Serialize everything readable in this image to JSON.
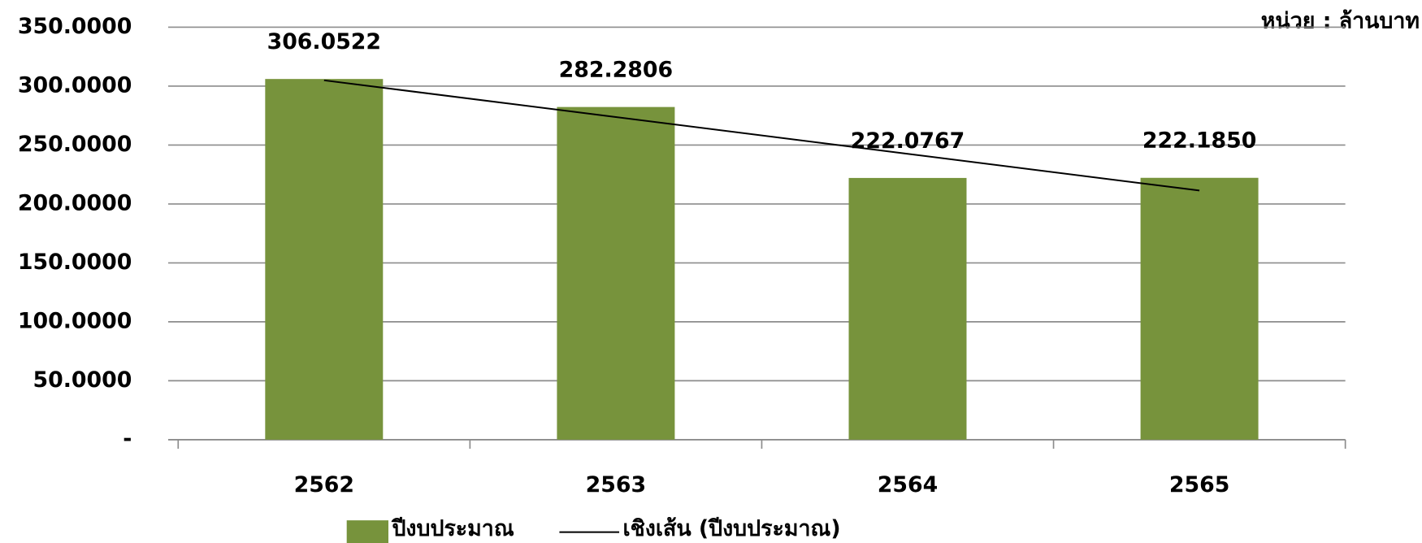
{
  "chart_data": {
    "type": "bar",
    "unit_label": "หน่วย : ล้านบาท",
    "categories": [
      "2562",
      "2563",
      "2564",
      "2565"
    ],
    "series": [
      {
        "name": "ปีงบประมาณ",
        "color": "#77933c",
        "values": [
          306.0522,
          282.2806,
          222.0767,
          222.185
        ],
        "value_labels": [
          "306.0522",
          "282.2806",
          "222.0767",
          "222.1850"
        ]
      },
      {
        "name": "เชิงเส้น (ปีงบประมาณ)",
        "type": "line",
        "color": "#000000",
        "values": [
          304.92,
          273.74,
          242.56,
          211.38
        ]
      }
    ],
    "ylim": [
      0,
      350
    ],
    "yticks": [
      {
        "value": 0,
        "label": "-"
      },
      {
        "value": 50,
        "label": "50.0000"
      },
      {
        "value": 100,
        "label": "100.0000"
      },
      {
        "value": 150,
        "label": "150.0000"
      },
      {
        "value": 200,
        "label": "200.0000"
      },
      {
        "value": 250,
        "label": "250.0000"
      },
      {
        "value": 300,
        "label": "300.0000"
      },
      {
        "value": 350,
        "label": "350.0000"
      }
    ],
    "grid": true,
    "legend": "bottom"
  }
}
